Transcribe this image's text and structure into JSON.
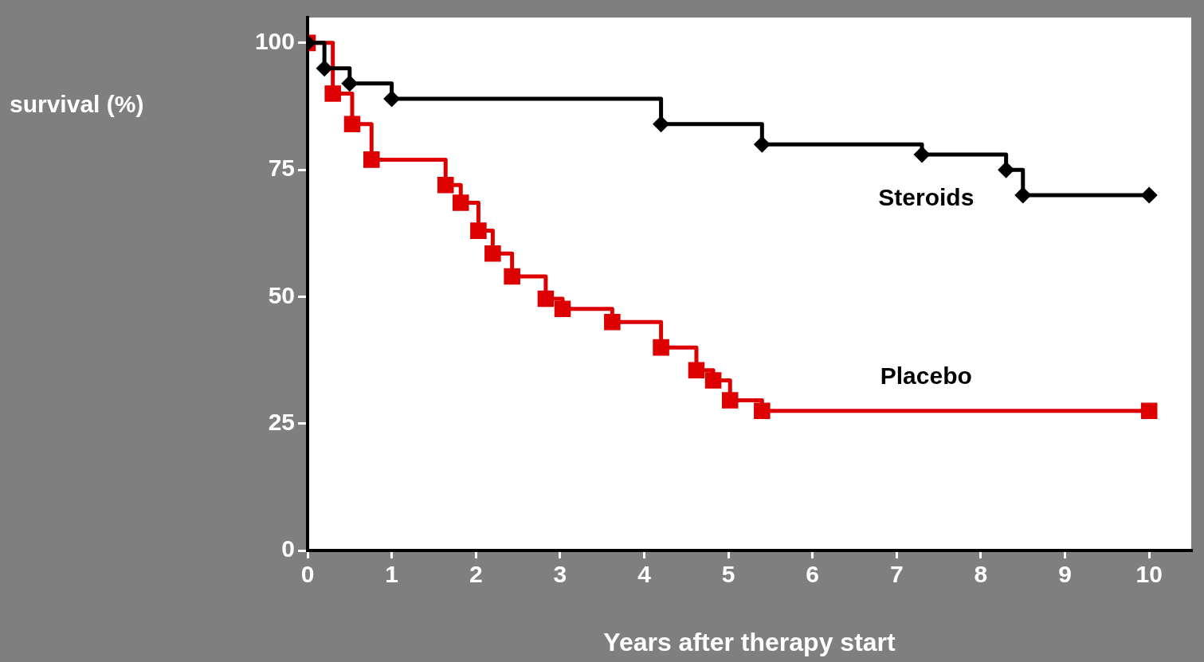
{
  "chart_data": {
    "type": "step",
    "xlabel": "Years after therapy start",
    "ylabel": "survival (%)",
    "xlim": [
      0,
      10.5
    ],
    "ylim": [
      0,
      105
    ],
    "xticks": [
      0,
      1,
      2,
      3,
      4,
      5,
      6,
      7,
      8,
      9,
      10
    ],
    "yticks": [
      0,
      25,
      50,
      75,
      100
    ],
    "legend": false,
    "series": [
      {
        "name": "Steroids",
        "color": "#000000",
        "marker": "diamond",
        "x": [
          0,
          0.2,
          0.5,
          1,
          4.2,
          5.4,
          7.3,
          8.3,
          8.5,
          10
        ],
        "values": [
          100,
          95,
          92,
          89,
          84,
          80,
          78,
          75,
          70,
          70
        ]
      },
      {
        "name": "Placebo",
        "color": "#dd0000",
        "marker": "square",
        "x": [
          0,
          0.3,
          0.53,
          0.76,
          1.64,
          1.82,
          2.03,
          2.2,
          2.43,
          2.83,
          3.03,
          3.62,
          4.2,
          4.62,
          4.82,
          5.02,
          5.4,
          10
        ],
        "values": [
          100,
          90,
          84,
          77,
          72,
          68.5,
          63,
          58.5,
          54,
          49.6,
          47.6,
          45,
          40,
          35.5,
          33.5,
          29.6,
          27.5,
          27.5
        ]
      }
    ]
  }
}
